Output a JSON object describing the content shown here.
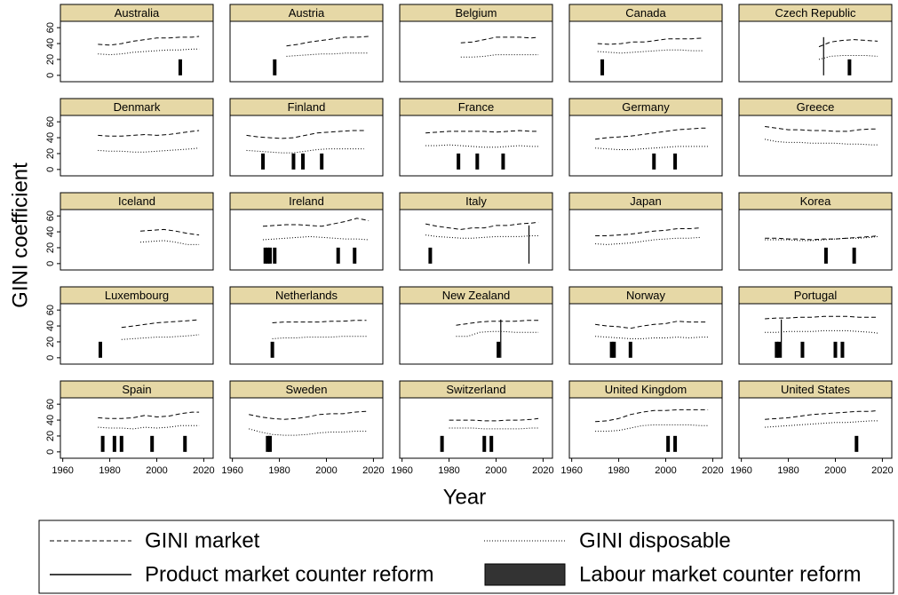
{
  "chart_data": {
    "type": "line",
    "xlabel": "Year",
    "ylabel": "GINI coefficient",
    "xlim": [
      1959,
      2024
    ],
    "xticks": [
      1960,
      1980,
      2000,
      2020
    ],
    "ylim": [
      -8,
      68
    ],
    "yticks": [
      0,
      20,
      40,
      60
    ],
    "legend": [
      "GINI market",
      "GINI disposable",
      "Product market counter reform",
      "Labour market counter reform"
    ],
    "panels": [
      {
        "title": "Australia",
        "x": [
          1975,
          1980,
          1985,
          1990,
          1995,
          2000,
          2005,
          2010,
          2015,
          2018
        ],
        "market": [
          39,
          38,
          40,
          43,
          45,
          47,
          47,
          48,
          48,
          49
        ],
        "disposable": [
          27,
          26,
          27,
          29,
          30,
          31,
          32,
          32,
          33,
          33
        ],
        "labour_reforms": [
          2010
        ]
      },
      {
        "title": "Austria",
        "x": [
          1983,
          1988,
          1993,
          1998,
          2003,
          2008,
          2013,
          2018
        ],
        "market": [
          37,
          39,
          42,
          44,
          46,
          48,
          48,
          49
        ],
        "disposable": [
          24,
          25,
          26,
          27,
          27,
          28,
          28,
          28
        ],
        "labour_reforms": [
          1978
        ]
      },
      {
        "title": "Belgium",
        "x": [
          1985,
          1990,
          1995,
          2000,
          2005,
          2010,
          2015,
          2018
        ],
        "market": [
          41,
          42,
          45,
          48,
          48,
          48,
          47,
          48
        ],
        "disposable": [
          23,
          23,
          24,
          26,
          26,
          26,
          26,
          26
        ]
      },
      {
        "title": "Canada",
        "x": [
          1971,
          1976,
          1981,
          1986,
          1991,
          1996,
          2001,
          2006,
          2011,
          2016
        ],
        "market": [
          40,
          39,
          40,
          42,
          42,
          44,
          46,
          46,
          46,
          47
        ],
        "disposable": [
          30,
          29,
          28,
          29,
          30,
          31,
          32,
          32,
          31,
          31
        ],
        "labour_reforms": [
          1973
        ]
      },
      {
        "title": "Czech Republic",
        "x": [
          1993,
          1998,
          2003,
          2008,
          2013,
          2018
        ],
        "market": [
          36,
          42,
          44,
          45,
          44,
          43
        ],
        "disposable": [
          20,
          24,
          25,
          25,
          25,
          24
        ],
        "product_reforms": [
          1995
        ],
        "labour_reforms": [
          2006
        ]
      },
      {
        "title": "Denmark",
        "x": [
          1975,
          1980,
          1985,
          1990,
          1995,
          2000,
          2005,
          2010,
          2015,
          2018
        ],
        "market": [
          43,
          42,
          42,
          43,
          44,
          43,
          44,
          46,
          48,
          49
        ],
        "disposable": [
          24,
          23,
          23,
          22,
          22,
          23,
          24,
          25,
          26,
          27
        ]
      },
      {
        "title": "Finland",
        "x": [
          1966,
          1971,
          1976,
          1981,
          1986,
          1991,
          1996,
          2001,
          2006,
          2011,
          2016
        ],
        "market": [
          43,
          41,
          40,
          39,
          40,
          43,
          46,
          47,
          48,
          49,
          49
        ],
        "disposable": [
          24,
          23,
          22,
          21,
          21,
          23,
          25,
          26,
          26,
          26,
          26
        ],
        "labour_reforms": [
          1973,
          1986,
          1990,
          1998
        ]
      },
      {
        "title": "France",
        "x": [
          1970,
          1975,
          1980,
          1985,
          1990,
          1995,
          2000,
          2005,
          2010,
          2015,
          2018
        ],
        "market": [
          46,
          47,
          48,
          48,
          48,
          48,
          47,
          48,
          49,
          48,
          48
        ],
        "disposable": [
          30,
          30,
          31,
          30,
          29,
          28,
          28,
          29,
          30,
          29,
          29
        ],
        "labour_reforms": [
          1984,
          1992,
          2003
        ]
      },
      {
        "title": "Germany",
        "x": [
          1970,
          1975,
          1980,
          1985,
          1990,
          1995,
          2000,
          2005,
          2010,
          2015,
          2018
        ],
        "market": [
          38,
          40,
          41,
          42,
          44,
          46,
          48,
          50,
          51,
          52,
          52
        ],
        "disposable": [
          27,
          26,
          25,
          25,
          26,
          27,
          28,
          29,
          29,
          29,
          29
        ],
        "labour_reforms": [
          1995,
          2004
        ]
      },
      {
        "title": "Greece",
        "x": [
          1970,
          1975,
          1980,
          1985,
          1990,
          1995,
          2000,
          2005,
          2010,
          2015,
          2018
        ],
        "market": [
          54,
          52,
          50,
          50,
          49,
          49,
          48,
          48,
          50,
          51,
          51
        ],
        "disposable": [
          38,
          35,
          34,
          34,
          33,
          33,
          33,
          32,
          32,
          31,
          31
        ]
      },
      {
        "title": "Iceland",
        "x": [
          1993,
          1998,
          2003,
          2008,
          2013,
          2018
        ],
        "market": [
          41,
          42,
          43,
          41,
          38,
          36
        ],
        "disposable": [
          27,
          28,
          29,
          27,
          24,
          24
        ]
      },
      {
        "title": "Ireland",
        "x": [
          1973,
          1978,
          1983,
          1988,
          1993,
          1998,
          2003,
          2008,
          2013,
          2018
        ],
        "market": [
          47,
          48,
          49,
          49,
          48,
          47,
          50,
          53,
          57,
          54
        ],
        "disposable": [
          30,
          31,
          32,
          33,
          34,
          33,
          32,
          31,
          31,
          30
        ],
        "labour_reforms": [
          1974,
          1975,
          1976,
          1978,
          2005,
          2012
        ]
      },
      {
        "title": "Italy",
        "x": [
          1970,
          1975,
          1980,
          1985,
          1990,
          1995,
          2000,
          2005,
          2010,
          2015,
          2018
        ],
        "market": [
          50,
          47,
          45,
          43,
          45,
          45,
          48,
          48,
          50,
          51,
          52
        ],
        "disposable": [
          36,
          34,
          33,
          32,
          32,
          33,
          34,
          34,
          34,
          35,
          35
        ],
        "product_reforms": [
          2014
        ],
        "labour_reforms": [
          1972
        ]
      },
      {
        "title": "Japan",
        "x": [
          1970,
          1975,
          1980,
          1985,
          1990,
          1995,
          2000,
          2005,
          2010,
          2015
        ],
        "market": [
          35,
          35,
          36,
          37,
          39,
          41,
          42,
          44,
          44,
          45
        ],
        "disposable": [
          25,
          24,
          25,
          26,
          28,
          30,
          31,
          32,
          32,
          33
        ]
      },
      {
        "title": "Korea",
        "x": [
          1970,
          1975,
          1980,
          1985,
          1990,
          1995,
          2000,
          2005,
          2010,
          2015,
          2018
        ],
        "market": [
          32,
          32,
          31,
          31,
          30,
          31,
          31,
          32,
          33,
          34,
          35
        ],
        "disposable": [
          30,
          30,
          30,
          29,
          29,
          30,
          31,
          32,
          32,
          33,
          34
        ],
        "labour_reforms": [
          1996,
          2008
        ]
      },
      {
        "title": "Luxembourg",
        "x": [
          1985,
          1990,
          1995,
          2000,
          2005,
          2010,
          2015,
          2018
        ],
        "market": [
          38,
          40,
          42,
          44,
          45,
          46,
          47,
          48
        ],
        "disposable": [
          23,
          24,
          25,
          26,
          26,
          27,
          28,
          29
        ],
        "labour_reforms": [
          1976
        ]
      },
      {
        "title": "Netherlands",
        "x": [
          1977,
          1982,
          1987,
          1992,
          1997,
          2002,
          2007,
          2012,
          2017
        ],
        "market": [
          44,
          45,
          45,
          45,
          45,
          46,
          46,
          47,
          47
        ],
        "disposable": [
          24,
          25,
          25,
          26,
          26,
          26,
          27,
          27,
          27
        ],
        "labour_reforms": [
          1977
        ]
      },
      {
        "title": "New Zealand",
        "x": [
          1983,
          1988,
          1993,
          1998,
          2003,
          2008,
          2013,
          2018
        ],
        "market": [
          41,
          43,
          45,
          46,
          46,
          46,
          47,
          47
        ],
        "disposable": [
          27,
          27,
          32,
          33,
          33,
          32,
          32,
          32
        ],
        "product_reforms": [
          2002
        ],
        "labour_reforms": [
          2001
        ]
      },
      {
        "title": "Norway",
        "x": [
          1970,
          1975,
          1980,
          1985,
          1990,
          1995,
          2000,
          2005,
          2010,
          2015,
          2018
        ],
        "market": [
          42,
          40,
          39,
          37,
          40,
          42,
          43,
          46,
          45,
          45,
          45
        ],
        "disposable": [
          27,
          26,
          25,
          24,
          24,
          25,
          25,
          26,
          25,
          26,
          26
        ],
        "labour_reforms": [
          1977,
          1978,
          1985
        ]
      },
      {
        "title": "Portugal",
        "x": [
          1970,
          1975,
          1980,
          1985,
          1990,
          1995,
          2000,
          2005,
          2010,
          2015,
          2018
        ],
        "market": [
          49,
          50,
          50,
          51,
          51,
          52,
          52,
          52,
          51,
          51,
          51
        ],
        "disposable": [
          32,
          32,
          33,
          33,
          33,
          34,
          34,
          34,
          33,
          32,
          31
        ],
        "product_reforms": [
          1977
        ],
        "labour_reforms": [
          1975,
          1976,
          1986,
          2000,
          2003
        ]
      },
      {
        "title": "Spain",
        "x": [
          1975,
          1980,
          1985,
          1990,
          1995,
          2000,
          2005,
          2010,
          2015,
          2018
        ],
        "market": [
          43,
          42,
          42,
          43,
          46,
          44,
          45,
          48,
          50,
          50
        ],
        "disposable": [
          31,
          30,
          30,
          29,
          31,
          30,
          31,
          33,
          33,
          33
        ],
        "labour_reforms": [
          1977,
          1982,
          1985,
          1998,
          2012
        ]
      },
      {
        "title": "Sweden",
        "x": [
          1967,
          1972,
          1977,
          1982,
          1987,
          1992,
          1997,
          2002,
          2007,
          2012,
          2017
        ],
        "market": [
          47,
          44,
          42,
          41,
          42,
          44,
          47,
          48,
          48,
          50,
          51
        ],
        "disposable": [
          29,
          25,
          22,
          21,
          21,
          22,
          24,
          25,
          25,
          26,
          26
        ],
        "labour_reforms": [
          1975,
          1976
        ]
      },
      {
        "title": "Switzerland",
        "x": [
          1980,
          1985,
          1990,
          1995,
          2000,
          2005,
          2010,
          2015,
          2018
        ],
        "market": [
          40,
          40,
          40,
          39,
          39,
          40,
          40,
          41,
          42
        ],
        "disposable": [
          30,
          30,
          30,
          29,
          29,
          29,
          29,
          30,
          30
        ],
        "labour_reforms": [
          1977,
          1995,
          1998
        ]
      },
      {
        "title": "United Kingdom",
        "x": [
          1970,
          1975,
          1980,
          1985,
          1990,
          1995,
          2000,
          2005,
          2010,
          2015,
          2018
        ],
        "market": [
          38,
          39,
          42,
          47,
          50,
          52,
          52,
          53,
          53,
          53,
          53
        ],
        "disposable": [
          26,
          26,
          27,
          30,
          33,
          34,
          34,
          34,
          34,
          33,
          33
        ],
        "labour_reforms": [
          2001,
          2004
        ]
      },
      {
        "title": "United States",
        "x": [
          1970,
          1975,
          1980,
          1985,
          1990,
          1995,
          2000,
          2005,
          2010,
          2015,
          2018
        ],
        "market": [
          41,
          42,
          43,
          45,
          47,
          48,
          49,
          50,
          51,
          51,
          52
        ],
        "disposable": [
          31,
          32,
          33,
          34,
          35,
          36,
          37,
          37,
          38,
          39,
          39
        ],
        "labour_reforms": [
          2009
        ]
      }
    ]
  }
}
